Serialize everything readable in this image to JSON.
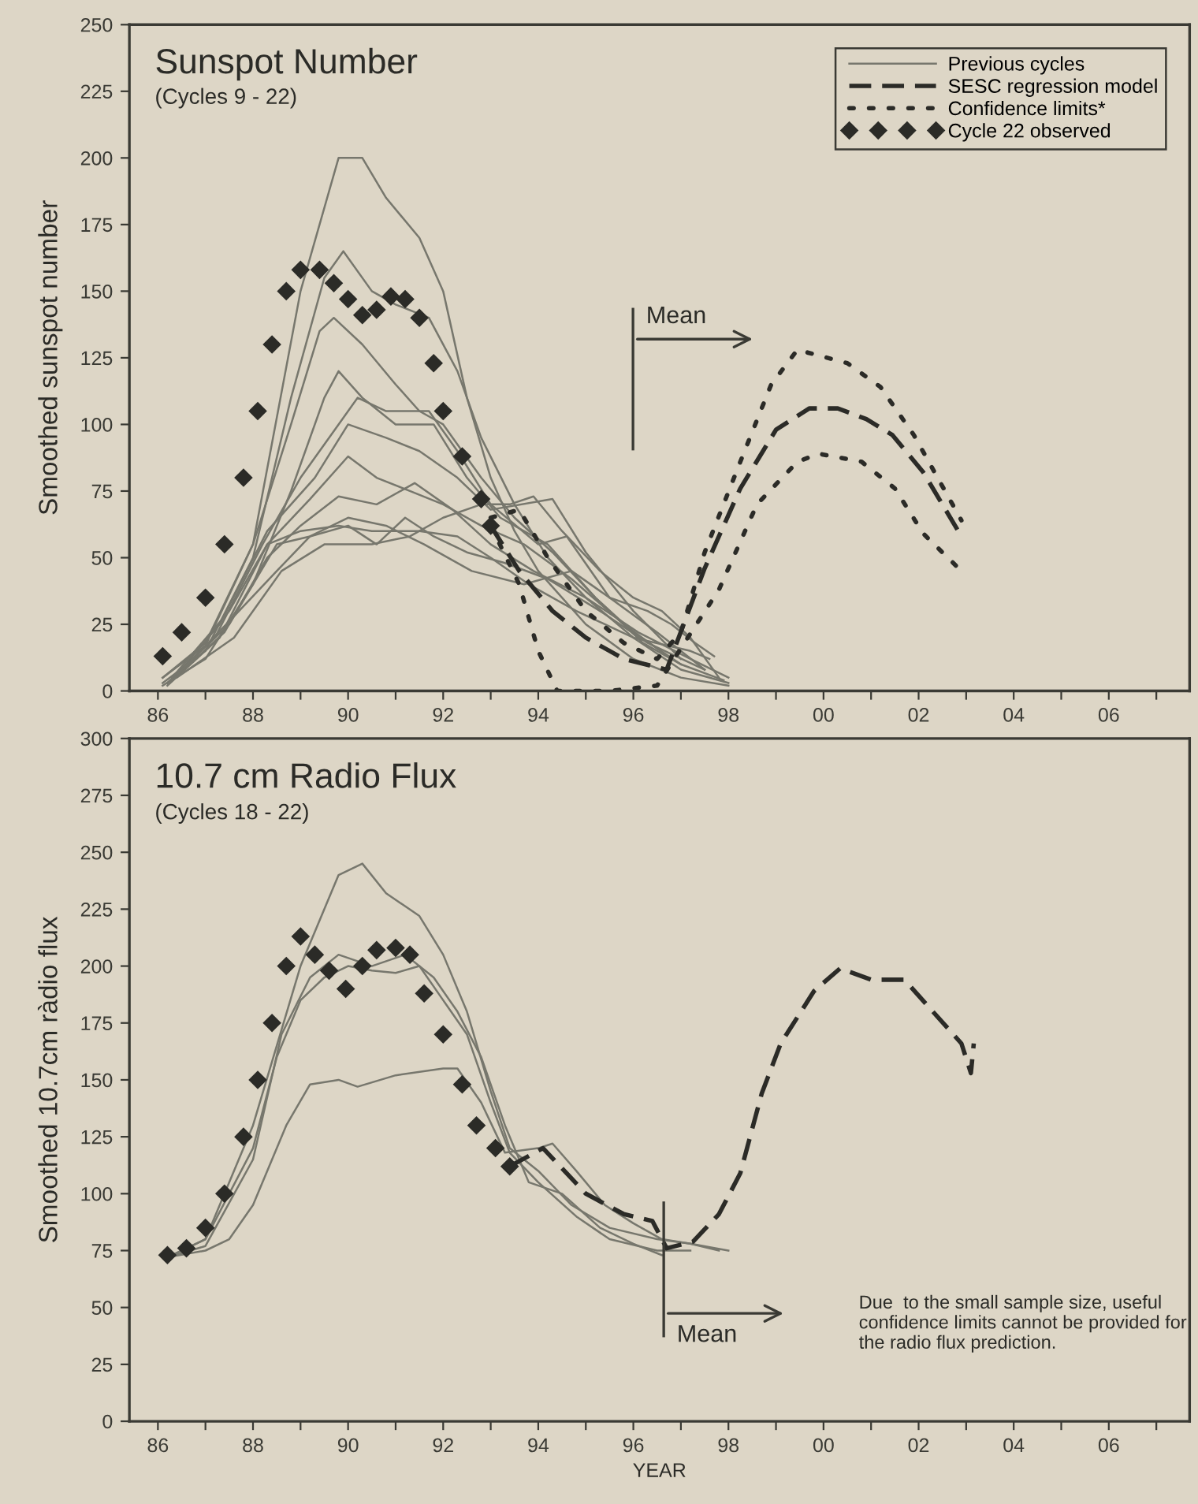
{
  "chart_data": [
    {
      "type": "line",
      "title": "Sunspot Number",
      "subtitle": "(Cycles 9 - 22)",
      "ylabel": "Smoothed sunspot number",
      "xlim": [
        1985.4,
        2007.7
      ],
      "ylim": [
        0,
        250
      ],
      "xticks": [
        {
          "value": 1986,
          "label": "86"
        },
        {
          "value": 1987,
          "label": null
        },
        {
          "value": 1988,
          "label": "88"
        },
        {
          "value": 1989,
          "label": null
        },
        {
          "value": 1990,
          "label": "90"
        },
        {
          "value": 1991,
          "label": null
        },
        {
          "value": 1992,
          "label": "92"
        },
        {
          "value": 1993,
          "label": null
        },
        {
          "value": 1994,
          "label": "94"
        },
        {
          "value": 1995,
          "label": null
        },
        {
          "value": 1996,
          "label": "96"
        },
        {
          "value": 1997,
          "label": null
        },
        {
          "value": 1998,
          "label": "98"
        },
        {
          "value": 1999,
          "label": null
        },
        {
          "value": 2000,
          "label": "00"
        },
        {
          "value": 2001,
          "label": null
        },
        {
          "value": 2002,
          "label": "02"
        },
        {
          "value": 2003,
          "label": null
        },
        {
          "value": 2004,
          "label": "04"
        },
        {
          "value": 2005,
          "label": null
        },
        {
          "value": 2006,
          "label": "06"
        },
        {
          "value": 2007,
          "label": null
        }
      ],
      "yticks": [
        0,
        25,
        50,
        75,
        100,
        125,
        150,
        175,
        200,
        225,
        250
      ],
      "grid": false,
      "legend": "top right",
      "annotations": [
        "Mean"
      ],
      "series": [
        {
          "name": "Previous cycles",
          "color": "#77776d",
          "line_style": "solid",
          "x": [
            1986.1,
            1987,
            1988,
            1989,
            1989.8,
            1990.3,
            1990.8,
            1991.5,
            1992.0,
            1992.5,
            1993.0,
            1993.5,
            1994.0,
            1995,
            1996,
            1997,
            1998
          ],
          "values": [
            5,
            18,
            55,
            150,
            200,
            200,
            185,
            170,
            150,
            110,
            80,
            60,
            45,
            25,
            12,
            5,
            2
          ]
        },
        {
          "color": "#77776d",
          "line_style": "solid",
          "x": [
            1986.1,
            1987,
            1988,
            1988.8,
            1989.5,
            1989.9,
            1990.5,
            1991,
            1991.7,
            1992.3,
            1992.8,
            1993.5,
            1994.2,
            1995,
            1996,
            1997,
            1998
          ],
          "values": [
            3,
            15,
            50,
            110,
            155,
            165,
            150,
            145,
            140,
            120,
            95,
            70,
            50,
            35,
            20,
            8,
            3
          ]
        },
        {
          "color": "#77776d",
          "line_style": "solid",
          "x": [
            1986.1,
            1987,
            1988,
            1988.8,
            1989.4,
            1989.7,
            1990.3,
            1991,
            1991.5,
            1992,
            1992.8,
            1993.5,
            1994.3,
            1995.2,
            1996,
            1997,
            1997.9
          ],
          "values": [
            5,
            17,
            55,
            100,
            135,
            140,
            130,
            115,
            105,
            100,
            80,
            65,
            52,
            35,
            22,
            10,
            4
          ]
        },
        {
          "color": "#77776d",
          "line_style": "solid",
          "x": [
            1986.1,
            1987,
            1988,
            1988.8,
            1989.5,
            1989.8,
            1990.3,
            1991,
            1991.8,
            1992.5,
            1993.2,
            1994.2,
            1995.2,
            1996.2,
            1997
          ],
          "values": [
            2,
            12,
            40,
            75,
            110,
            120,
            110,
            100,
            100,
            80,
            65,
            55,
            35,
            18,
            10
          ]
        },
        {
          "color": "#77776d",
          "line_style": "solid",
          "x": [
            1986.2,
            1987.2,
            1988.2,
            1989,
            1989.8,
            1990.2,
            1990.8,
            1991.7,
            1992.3,
            1993,
            1994,
            1994.6,
            1995.5,
            1996.5,
            1997.5
          ],
          "values": [
            3,
            20,
            55,
            80,
            100,
            110,
            105,
            105,
            90,
            70,
            55,
            58,
            35,
            22,
            8
          ]
        },
        {
          "color": "#77776d",
          "line_style": "solid",
          "x": [
            1986.3,
            1987.3,
            1988.3,
            1989.3,
            1990,
            1990.8,
            1991.5,
            1992.3,
            1993,
            1994.3,
            1995,
            1996,
            1997
          ],
          "values": [
            4,
            25,
            60,
            80,
            100,
            95,
            90,
            80,
            68,
            72,
            52,
            30,
            12
          ]
        },
        {
          "color": "#77776d",
          "line_style": "solid",
          "x": [
            1986.2,
            1987.3,
            1988.3,
            1989.2,
            1990,
            1990.6,
            1991.3,
            1992,
            1992.8,
            1993.7,
            1994.7,
            1995.8,
            1996.8
          ],
          "values": [
            2,
            20,
            55,
            72,
            88,
            80,
            75,
            70,
            62,
            55,
            42,
            25,
            12
          ]
        },
        {
          "color": "#77776d",
          "line_style": "solid",
          "x": [
            1986.3,
            1987.4,
            1988.3,
            1989.0,
            1989.8,
            1990.6,
            1991.4,
            1992.2,
            1993,
            1993.9,
            1995,
            1996.1,
            1997.2,
            1998
          ],
          "values": [
            4,
            22,
            50,
            62,
            73,
            70,
            78,
            68,
            55,
            45,
            35,
            22,
            12,
            5
          ]
        },
        {
          "color": "#77776d",
          "line_style": "solid",
          "x": [
            1986.2,
            1987.5,
            1988.5,
            1989.2,
            1990.0,
            1990.6,
            1991.2,
            1991.8,
            1992.5,
            1993.3,
            1994.2,
            1995.3,
            1996.3,
            1997.5
          ],
          "values": [
            3,
            25,
            55,
            58,
            62,
            55,
            65,
            58,
            52,
            48,
            42,
            30,
            18,
            8
          ]
        },
        {
          "color": "#77776d",
          "line_style": "solid",
          "x": [
            1986.3,
            1987.5,
            1988.3,
            1989,
            1989.8,
            1990.5,
            1991.5,
            1992.3,
            1993,
            1993.8,
            1994.8,
            1996,
            1997.2,
            1997.6
          ],
          "values": [
            5,
            30,
            55,
            60,
            62,
            60,
            60,
            58,
            50,
            40,
            30,
            20,
            15,
            12
          ]
        },
        {
          "color": "#77776d",
          "line_style": "solid",
          "x": [
            1986.4,
            1987.6,
            1988.5,
            1989.2,
            1990,
            1990.8,
            1991.6,
            1992.6,
            1993.7,
            1994.7,
            1995.5,
            1996.3,
            1996.8,
            1997.3,
            1997.7
          ],
          "values": [
            6,
            28,
            45,
            58,
            65,
            62,
            55,
            45,
            40,
            45,
            35,
            30,
            25,
            18,
            13
          ]
        },
        {
          "color": "#77776d",
          "line_style": "solid",
          "x": [
            1986.4,
            1987.6,
            1988.6,
            1989.5,
            1990.5,
            1991.3,
            1992,
            1992.8,
            1993.4,
            1993.9,
            1994.5,
            1995.3,
            1996,
            1996.6,
            1997.2,
            1997.8
          ],
          "values": [
            5,
            20,
            45,
            55,
            55,
            58,
            65,
            70,
            70,
            73,
            60,
            45,
            35,
            30,
            20,
            5
          ]
        },
        {
          "name": "SESC regression model",
          "color": "#2b2b27",
          "line_style": "dashed",
          "x": [
            1993.0,
            1993.6,
            1994.3,
            1995.0,
            1995.8,
            1996.7,
            1997.5,
            1998.25,
            1999.0,
            1999.7,
            2000.3,
            2000.9,
            2001.45,
            2002.1,
            2002.9
          ],
          "values": [
            62,
            45,
            30,
            20,
            12,
            8,
            46,
            76,
            98,
            106,
            106,
            102,
            96,
            82,
            58
          ]
        },
        {
          "name": "Confidence limits*",
          "color": "#2b2b27",
          "line_style": "dotted",
          "x": [
            1993.0,
            1993.6,
            1994.2,
            1995.0,
            1995.8,
            1996.5,
            1997.0,
            1997.5,
            1998.25,
            1998.9,
            1999.45,
            2000.5,
            2001.2,
            2001.9,
            2002.9
          ],
          "values": [
            65,
            68,
            50,
            30,
            18,
            12,
            22,
            52,
            86,
            115,
            128,
            123,
            114,
            96,
            64
          ]
        },
        {
          "color": "#2b2b27",
          "line_style": "dotted",
          "x": [
            1993.0,
            1993.6,
            1994.0,
            1994.4,
            1995.5,
            1996.5,
            1997.0,
            1997.8,
            1998.6,
            1999.45,
            1999.9,
            2000.8,
            2001.5,
            2002.1,
            2002.9
          ],
          "values": [
            62,
            40,
            15,
            0,
            0,
            2,
            16,
            38,
            70,
            86,
            89,
            86,
            76,
            59,
            45
          ]
        },
        {
          "name": "Cycle 22 observed",
          "type": "scatter",
          "marker": "diamond",
          "color": "#2b2b27",
          "x": [
            1986.1,
            1986.5,
            1987.0,
            1987.4,
            1987.8,
            1988.1,
            1988.4,
            1988.7,
            1989.0,
            1989.4,
            1989.7,
            1990.0,
            1990.3,
            1990.6,
            1990.9,
            1991.2,
            1991.5,
            1991.8,
            1992.0,
            1992.4,
            1992.8,
            1993.0
          ],
          "values": [
            13,
            22,
            35,
            55,
            80,
            105,
            130,
            150,
            158,
            158,
            153,
            147,
            141,
            143,
            148,
            147,
            140,
            123,
            105,
            88,
            72,
            62
          ]
        }
      ]
    },
    {
      "type": "line",
      "title": "10.7 cm Radio Flux",
      "subtitle": "(Cycles 18 - 22)",
      "ylabel": "Smoothed 10.7cm ràdio flux",
      "xlabel": "YEAR",
      "xlim": [
        1985.4,
        2007.7
      ],
      "ylim": [
        0,
        300
      ],
      "xticks": [
        {
          "value": 1986,
          "label": "86"
        },
        {
          "value": 1987,
          "label": null
        },
        {
          "value": 1988,
          "label": "88"
        },
        {
          "value": 1989,
          "label": null
        },
        {
          "value": 1990,
          "label": "90"
        },
        {
          "value": 1991,
          "label": null
        },
        {
          "value": 1992,
          "label": "92"
        },
        {
          "value": 1993,
          "label": null
        },
        {
          "value": 1994,
          "label": "94"
        },
        {
          "value": 1995,
          "label": null
        },
        {
          "value": 1996,
          "label": "96"
        },
        {
          "value": 1997,
          "label": null
        },
        {
          "value": 1998,
          "label": "98"
        },
        {
          "value": 1999,
          "label": null
        },
        {
          "value": 2000,
          "label": "00"
        },
        {
          "value": 2001,
          "label": null
        },
        {
          "value": 2002,
          "label": "02"
        },
        {
          "value": 2003,
          "label": null
        },
        {
          "value": 2004,
          "label": "04"
        },
        {
          "value": 2005,
          "label": null
        },
        {
          "value": 2006,
          "label": "06"
        },
        {
          "value": 2007,
          "label": null
        }
      ],
      "yticks": [
        0,
        25,
        50,
        75,
        100,
        125,
        150,
        175,
        200,
        225,
        250,
        275,
        300
      ],
      "grid": false,
      "annotations": [
        "Mean",
        "Due  to the small sample size, useful confidence limits cannot be provided for the radio flux prediction."
      ],
      "series": [
        {
          "color": "#77776d",
          "line_style": "solid",
          "x": [
            1986.2,
            1987,
            1988,
            1989,
            1989.8,
            1990.3,
            1990.8,
            1991.5,
            1992.0,
            1992.5,
            1993.0,
            1993.4,
            1994.0,
            1994.7,
            1995.5,
            1996.5,
            1997.2,
            1998
          ],
          "values": [
            72,
            80,
            130,
            200,
            240,
            245,
            232,
            222,
            205,
            180,
            145,
            120,
            110,
            95,
            85,
            80,
            78,
            75
          ]
        },
        {
          "color": "#77776d",
          "line_style": "solid",
          "x": [
            1986.2,
            1987,
            1988,
            1988.5,
            1989,
            1989.5,
            1990,
            1990.5,
            1991,
            1991.5,
            1992,
            1992.5,
            1993,
            1993.4,
            1994,
            1994.8,
            1995.5,
            1996.5,
            1997.2
          ],
          "values": [
            72,
            80,
            120,
            160,
            185,
            195,
            200,
            198,
            197,
            200,
            185,
            170,
            140,
            118,
            105,
            90,
            80,
            75,
            75
          ]
        },
        {
          "color": "#77776d",
          "line_style": "solid",
          "x": [
            1986.2,
            1987,
            1987.5,
            1988,
            1988.7,
            1989.2,
            1989.8,
            1990.2,
            1991,
            1992.0,
            1992.3,
            1992.8,
            1993.3,
            1994.0,
            1994.3,
            1994.8,
            1995.4,
            1996,
            1996.6,
            1997.2,
            1997.8
          ],
          "values": [
            72,
            75,
            80,
            95,
            130,
            148,
            150,
            147,
            152,
            155,
            155,
            140,
            118,
            120,
            122,
            110,
            95,
            87,
            80,
            78,
            75
          ]
        },
        {
          "color": "#77776d",
          "line_style": "solid",
          "x": [
            1986.2,
            1987,
            1988,
            1988.6,
            1989.2,
            1989.8,
            1990.5,
            1991.2,
            1991.8,
            1992.3,
            1992.8,
            1993.3,
            1993.8,
            1994.5,
            1995.3,
            1996,
            1996.6
          ],
          "values": [
            72,
            77,
            115,
            170,
            195,
            205,
            200,
            205,
            195,
            180,
            160,
            130,
            105,
            100,
            85,
            78,
            73
          ]
        },
        {
          "color": "#2b2b27",
          "line_style": "dashed",
          "x": [
            1993.4,
            1994.1,
            1995.0,
            1995.8,
            1996.4,
            1996.7,
            1997.26,
            1997.8,
            1998.25,
            1998.7,
            1999.1,
            1999.8,
            2000.35,
            2001.0,
            2001.7,
            2002.3,
            2002.9,
            2003.1,
            2003.16
          ],
          "values": [
            112,
            120,
            100,
            91,
            88,
            76,
            79,
            91,
            109,
            144,
            166,
            189,
            199,
            194,
            194,
            180,
            166,
            153,
            166
          ]
        },
        {
          "type": "scatter",
          "marker": "diamond",
          "color": "#2b2b27",
          "x": [
            1986.2,
            1986.6,
            1987.0,
            1987.4,
            1987.8,
            1988.1,
            1988.4,
            1988.7,
            1989.0,
            1989.3,
            1989.6,
            1989.95,
            1990.3,
            1990.6,
            1991.0,
            1991.3,
            1991.6,
            1992.0,
            1992.4,
            1992.7,
            1993.1,
            1993.4
          ],
          "values": [
            73,
            76,
            85,
            100,
            125,
            150,
            175,
            200,
            213,
            205,
            198,
            190,
            200,
            207,
            208,
            205,
            188,
            170,
            148,
            130,
            120,
            112
          ]
        }
      ]
    }
  ]
}
